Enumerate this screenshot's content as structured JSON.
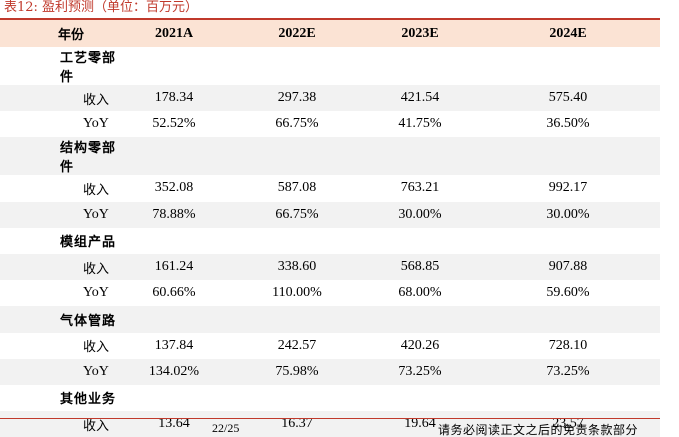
{
  "caption": "表12:  盈利预测（单位：百万元）",
  "table": {
    "headers": [
      "年份",
      "2021A",
      "2022E",
      "2023E",
      "2024E"
    ],
    "sections": [
      {
        "name": "工艺零部件",
        "rows": [
          {
            "label": "收入",
            "values": [
              "178.34",
              "297.38",
              "421.54",
              "575.40"
            ]
          },
          {
            "label": "YoY",
            "values": [
              "52.52%",
              "66.75%",
              "41.75%",
              "36.50%"
            ]
          }
        ]
      },
      {
        "name": "结构零部件",
        "rows": [
          {
            "label": "收入",
            "values": [
              "352.08",
              "587.08",
              "763.21",
              "992.17"
            ]
          },
          {
            "label": "YoY",
            "values": [
              "78.88%",
              "66.75%",
              "30.00%",
              "30.00%"
            ]
          }
        ]
      },
      {
        "name": "模组产品",
        "rows": [
          {
            "label": "收入",
            "values": [
              "161.24",
              "338.60",
              "568.85",
              "907.88"
            ]
          },
          {
            "label": "YoY",
            "values": [
              "60.66%",
              "110.00%",
              "68.00%",
              "59.60%"
            ]
          }
        ]
      },
      {
        "name": "气体管路",
        "rows": [
          {
            "label": "收入",
            "values": [
              "137.84",
              "242.57",
              "420.26",
              "728.10"
            ]
          },
          {
            "label": "YoY",
            "values": [
              "134.02%",
              "75.98%",
              "73.25%",
              "73.25%"
            ]
          }
        ]
      },
      {
        "name": "其他业务",
        "rows": [
          {
            "label": "收入",
            "values": [
              "13.64",
              "16.37",
              "19.64",
              "23.57"
            ]
          }
        ]
      }
    ]
  },
  "footer": {
    "page": "22/25",
    "disclaimer": "请务必阅读正文之后的免责条款部分"
  }
}
